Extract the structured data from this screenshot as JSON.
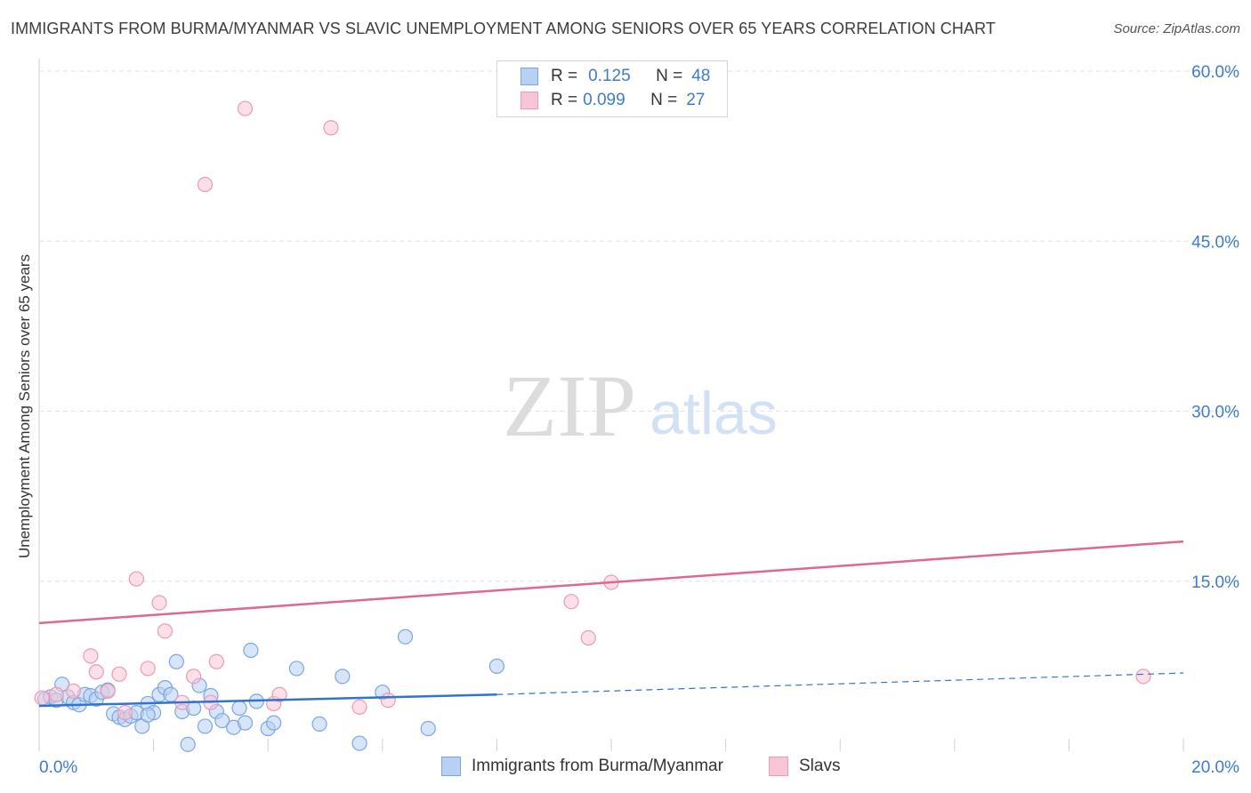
{
  "title": "IMMIGRANTS FROM BURMA/MYANMAR VS SLAVIC UNEMPLOYMENT AMONG SENIORS OVER 65 YEARS CORRELATION CHART",
  "source": "Source: ZipAtlas.com",
  "watermark": {
    "zip": "ZIP",
    "atlas": "atlas"
  },
  "legend": {
    "r_label": "R =",
    "n_label": "N =",
    "rows": [
      {
        "name": "Immigrants from Burma/Myanmar",
        "r": "0.125",
        "n": "48"
      },
      {
        "name": "Slavs",
        "r": "0.099",
        "n": "27"
      }
    ]
  },
  "chart_data": {
    "type": "scatter",
    "title": "IMMIGRANTS FROM BURMA/MYANMAR VS SLAVIC UNEMPLOYMENT AMONG SENIORS OVER 65 YEARS CORRELATION CHART",
    "xlabel": "",
    "ylabel": "Unemployment Among Seniors over 65 years",
    "xlim": [
      0,
      20
    ],
    "ylim": [
      0,
      60
    ],
    "x_tick_labels": [
      "0.0%",
      "20.0%"
    ],
    "y_ticks": [
      15,
      30,
      45,
      60
    ],
    "y_tick_labels": [
      "15.0%",
      "30.0%",
      "45.0%",
      "60.0%"
    ],
    "grid": true,
    "series": [
      {
        "name": "Immigrants from Burma/Myanmar",
        "color": "#7aa6e0",
        "fill": "#b8d0f2",
        "trend_color": "#2f74d0",
        "trend": {
          "x0": 0,
          "y0": 4.0,
          "x1": 8,
          "y1": 5.0,
          "x_dash_end": 20,
          "y_dash_end": 6.9
        },
        "points": [
          [
            0.1,
            4.6
          ],
          [
            0.2,
            4.8
          ],
          [
            0.3,
            4.5
          ],
          [
            0.4,
            5.9
          ],
          [
            0.5,
            4.8
          ],
          [
            0.6,
            4.3
          ],
          [
            0.7,
            4.1
          ],
          [
            0.8,
            5.0
          ],
          [
            0.9,
            4.9
          ],
          [
            1.0,
            4.6
          ],
          [
            1.1,
            5.2
          ],
          [
            1.2,
            5.4
          ],
          [
            1.3,
            3.3
          ],
          [
            1.4,
            3.0
          ],
          [
            1.5,
            2.8
          ],
          [
            1.6,
            3.1
          ],
          [
            1.7,
            3.4
          ],
          [
            1.8,
            2.2
          ],
          [
            1.9,
            4.2
          ],
          [
            2.0,
            3.4
          ],
          [
            2.1,
            5.0
          ],
          [
            2.2,
            5.6
          ],
          [
            2.3,
            5.0
          ],
          [
            2.4,
            7.9
          ],
          [
            2.5,
            3.5
          ],
          [
            2.6,
            0.6
          ],
          [
            2.7,
            3.8
          ],
          [
            2.8,
            5.8
          ],
          [
            2.9,
            2.2
          ],
          [
            3.0,
            4.9
          ],
          [
            3.1,
            3.5
          ],
          [
            3.2,
            2.7
          ],
          [
            3.4,
            2.1
          ],
          [
            3.5,
            3.8
          ],
          [
            3.6,
            2.5
          ],
          [
            3.7,
            8.9
          ],
          [
            3.8,
            4.4
          ],
          [
            4.0,
            2.0
          ],
          [
            4.1,
            2.5
          ],
          [
            4.5,
            7.3
          ],
          [
            4.9,
            2.4
          ],
          [
            5.3,
            6.6
          ],
          [
            5.6,
            0.7
          ],
          [
            6.0,
            5.2
          ],
          [
            6.4,
            10.1
          ],
          [
            6.8,
            2.0
          ],
          [
            8.0,
            7.5
          ],
          [
            1.9,
            3.2
          ]
        ]
      },
      {
        "name": "Slavs",
        "color": "#ec9ab5",
        "fill": "#f7c6d6",
        "trend_color": "#e0688e",
        "trend": {
          "x0": 0,
          "y0": 11.3,
          "x1": 20,
          "y1": 18.5
        },
        "points": [
          [
            0.05,
            4.7
          ],
          [
            0.3,
            5.0
          ],
          [
            0.6,
            5.3
          ],
          [
            0.9,
            8.4
          ],
          [
            1.0,
            7.0
          ],
          [
            1.2,
            5.3
          ],
          [
            1.4,
            6.8
          ],
          [
            1.5,
            3.4
          ],
          [
            1.7,
            15.2
          ],
          [
            1.9,
            7.3
          ],
          [
            2.1,
            13.1
          ],
          [
            2.2,
            10.6
          ],
          [
            2.5,
            4.3
          ],
          [
            2.7,
            6.6
          ],
          [
            2.9,
            50.0
          ],
          [
            3.0,
            4.3
          ],
          [
            3.1,
            7.9
          ],
          [
            3.6,
            56.7
          ],
          [
            4.1,
            4.2
          ],
          [
            4.2,
            5.0
          ],
          [
            5.1,
            55.0
          ],
          [
            5.6,
            3.9
          ],
          [
            6.1,
            4.5
          ],
          [
            9.3,
            13.2
          ],
          [
            9.6,
            10.0
          ],
          [
            10.0,
            14.9
          ],
          [
            19.3,
            6.6
          ]
        ]
      }
    ]
  }
}
